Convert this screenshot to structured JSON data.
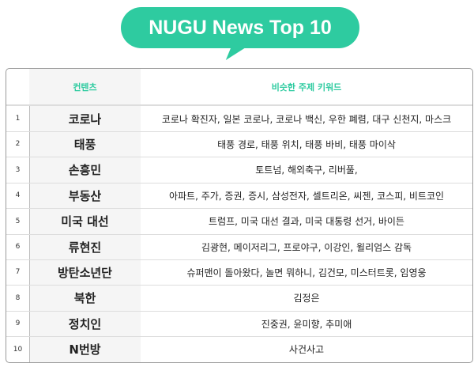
{
  "title": "NUGU News Top 10",
  "accent_color": "#2ecba0",
  "headers": {
    "content": "컨텐츠",
    "keywords": "비슷한 주제 키워드"
  },
  "rows": [
    {
      "rank": "1",
      "content": "코로나",
      "keywords": "코로나 확진자, 일본 코로나, 코로나 백신, 우한 폐렴, 대구 신천지, 마스크"
    },
    {
      "rank": "2",
      "content": "태풍",
      "keywords": "태풍 경로, 태풍 위치, 태풍 바비, 태풍 마이삭"
    },
    {
      "rank": "3",
      "content": "손흥민",
      "keywords": "토트넘, 해외축구, 리버풀,"
    },
    {
      "rank": "4",
      "content": "부동산",
      "keywords": "아파트, 주가, 증권, 증시, 삼성전자, 셀트리온, 씨젠, 코스피, 비트코인"
    },
    {
      "rank": "5",
      "content": "미국 대선",
      "keywords": "트럼프, 미국 대선 결과, 미국 대통령 선거, 바이든"
    },
    {
      "rank": "6",
      "content": "류현진",
      "keywords": "김광현, 메이저리그, 프로야구, 이강인, 윌리엄스 감독"
    },
    {
      "rank": "7",
      "content": "방탄소년단",
      "keywords": "슈퍼맨이 돌아왔다, 놀면 뭐하니, 김건모, 미스터트롯, 임영웅"
    },
    {
      "rank": "8",
      "content": "북한",
      "keywords": "김정은"
    },
    {
      "rank": "9",
      "content": "정치인",
      "keywords": "진중권, 윤미향, 추미애"
    },
    {
      "rank": "10",
      "content": "N번방",
      "keywords": "사건사고"
    }
  ]
}
